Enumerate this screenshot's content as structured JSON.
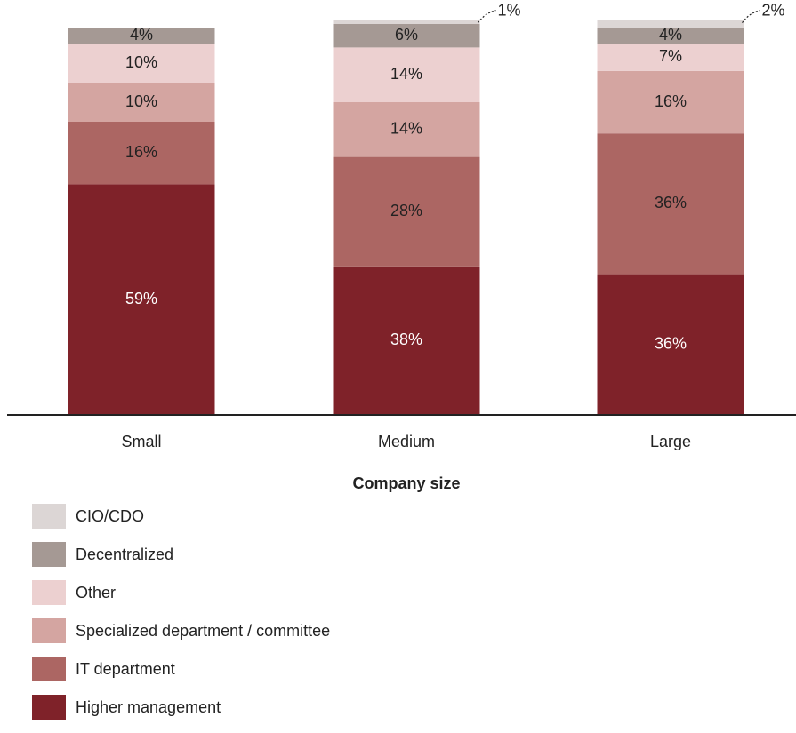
{
  "chart_data": {
    "type": "bar",
    "stacked": true,
    "xlabel": "Company size",
    "ylabel": "",
    "ylim": [
      0,
      100
    ],
    "categories": [
      "Small",
      "Medium",
      "Large"
    ],
    "series": [
      {
        "name": "Higher management",
        "color": "#7f2229",
        "label_color": "#ffffff",
        "values": [
          59,
          38,
          36
        ]
      },
      {
        "name": "IT department",
        "color": "#ac6663",
        "label_color": "#222222",
        "values": [
          16,
          28,
          36
        ]
      },
      {
        "name": "Specialized department / committee",
        "color": "#d4a5a1",
        "label_color": "#222222",
        "values": [
          10,
          14,
          16
        ]
      },
      {
        "name": "Other",
        "color": "#ecd0d0",
        "label_color": "#222222",
        "values": [
          10,
          14,
          7
        ]
      },
      {
        "name": "Decentralized",
        "color": "#a59994",
        "label_color": "#222222",
        "values": [
          4,
          6,
          4
        ]
      },
      {
        "name": "CIO/CDO",
        "color": "#dcd6d5",
        "label_color": "#222222",
        "values": [
          0,
          1,
          2
        ]
      }
    ],
    "data_labels": [
      [
        "59%",
        "38%",
        "36%"
      ],
      [
        "16%",
        "28%",
        "36%"
      ],
      [
        "10%",
        "14%",
        "16%"
      ],
      [
        "10%",
        "14%",
        "7%"
      ],
      [
        "4%",
        "6%",
        "4%"
      ],
      [
        "",
        "1%",
        "2%"
      ]
    ],
    "callout_series": "CIO/CDO",
    "legend_position": "bottom-left"
  }
}
